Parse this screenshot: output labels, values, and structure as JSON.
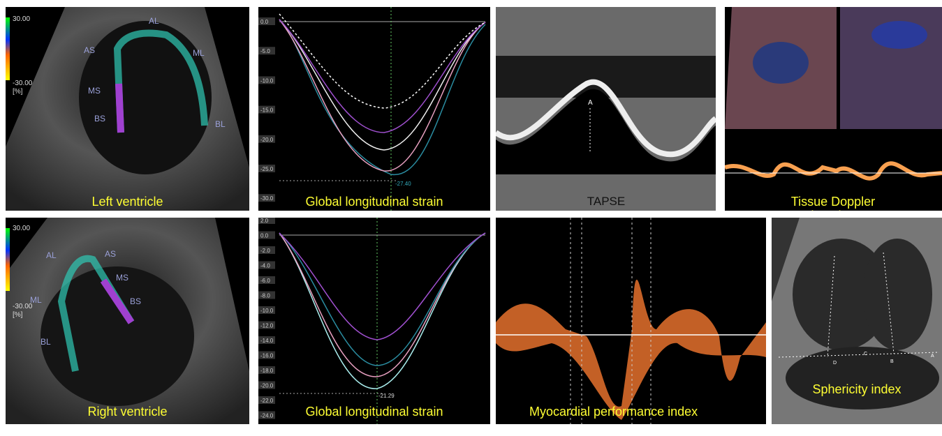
{
  "panels": {
    "left_ventricle": {
      "caption": "Left ventricle",
      "scale_top": "30.00",
      "scale_bottom": "-30.00",
      "scale_unit": "[%]",
      "segments": [
        "AL",
        "AS",
        "ML",
        "MS",
        "BS",
        "BL"
      ]
    },
    "strain_lv": {
      "caption": "Global longitudinal strain",
      "ticks": [
        "0.0",
        "-5.0",
        "-10.0",
        "-15.0",
        "-20.0",
        "-25.0",
        "-30.0"
      ],
      "peak_label": "-27.40"
    },
    "tapse": {
      "caption": "TAPSE",
      "marker": "A"
    },
    "tissue_doppler": {
      "caption": "Tissue Doppler imaging"
    },
    "right_ventricle": {
      "caption": "Right ventricle",
      "scale_top": "30.00",
      "scale_bottom": "-30.00",
      "scale_unit": "[%]",
      "segments": [
        "AL",
        "AS",
        "MS",
        "ML",
        "BS",
        "BL"
      ]
    },
    "strain_rv": {
      "caption": "Global longitudinal strain",
      "ticks": [
        "2.0",
        "0.0",
        "-2.0",
        "-4.0",
        "-6.0",
        "-8.0",
        "-10.0",
        "-12.0",
        "-14.0",
        "-16.0",
        "-18.0",
        "-20.0",
        "-22.0",
        "-24.0"
      ],
      "peak_label": "-21.29"
    },
    "mpi": {
      "caption": "Myocardial performance index"
    },
    "sphericity": {
      "caption": "Sphericity index",
      "points": [
        "D",
        "C",
        "B",
        "A"
      ]
    }
  }
}
